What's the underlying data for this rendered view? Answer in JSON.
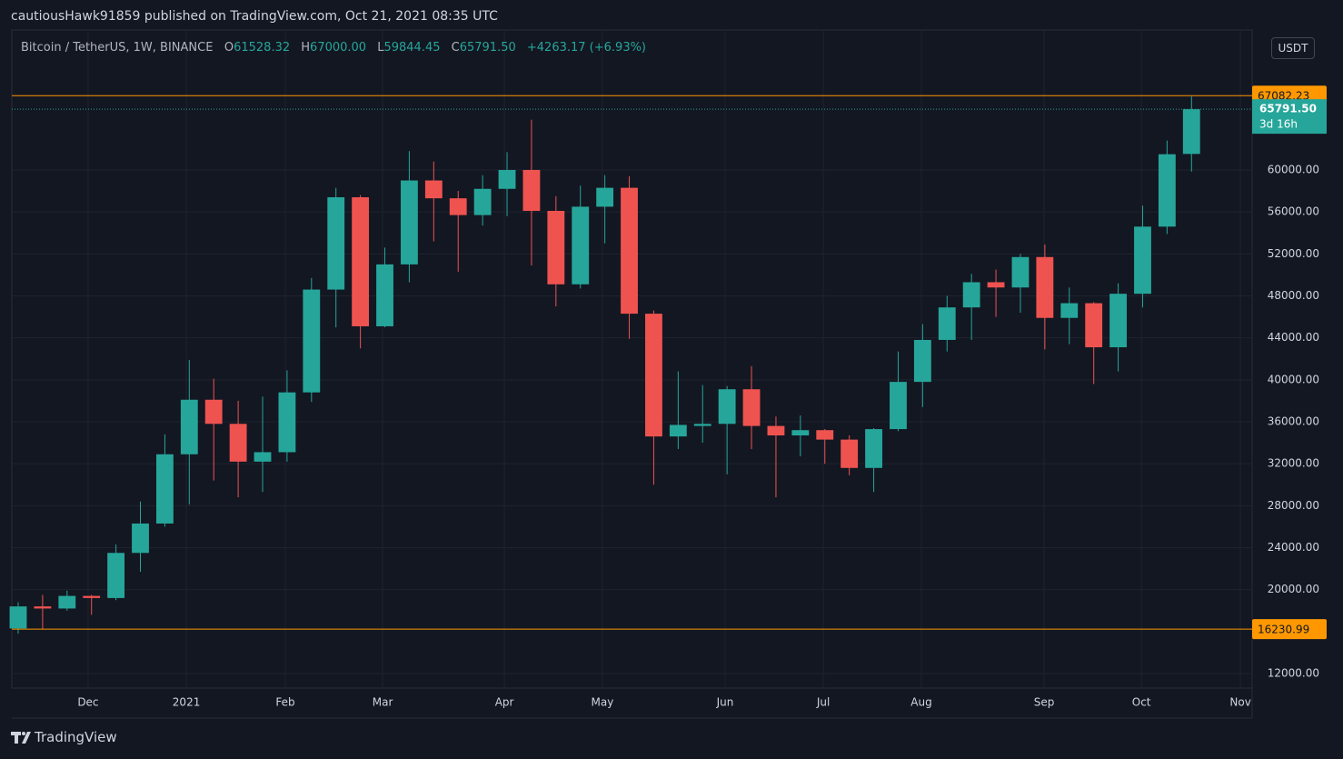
{
  "header": {
    "publisher": "cautiousHawk91859 published on TradingView.com, Oct 21, 2021 08:35 UTC"
  },
  "legend": {
    "symbol": "Bitcoin / TetherUS, 1W, BINANCE",
    "o_label": "O",
    "o": "61528.32",
    "h_label": "H",
    "h": "67000.00",
    "l_label": "L",
    "l": "59844.45",
    "c_label": "C",
    "c": "65791.50",
    "change": "+4263.17 (+6.93%)"
  },
  "currency_badge": "USDT",
  "footer": {
    "brand": "TradingView"
  },
  "chart_data": {
    "type": "candlestick",
    "up_color": "#26a69a",
    "down_color": "#ef5350",
    "open": [
      16300,
      18400,
      18200,
      19400,
      19200,
      23500,
      26300,
      32900,
      38100,
      35800,
      32200,
      33100,
      38800,
      48600,
      57400,
      45100,
      51000,
      59000,
      57300,
      55700,
      58200,
      60000,
      56100,
      49100,
      56500,
      58300,
      46300,
      34600,
      35600,
      35800,
      39100,
      35600,
      34700,
      35200,
      34300,
      31600,
      35300,
      39800,
      43800,
      46900,
      49300,
      48800,
      51700,
      45900,
      47300,
      43100,
      48200,
      54600,
      61528.32
    ],
    "high": [
      18800,
      19500,
      19900,
      19500,
      24300,
      28400,
      34800,
      41900,
      40100,
      38000,
      38400,
      40900,
      49700,
      58300,
      57600,
      52600,
      61800,
      60800,
      58000,
      59500,
      61700,
      64800,
      57500,
      58500,
      59500,
      59400,
      46600,
      40800,
      39500,
      39400,
      41300,
      36500,
      36600,
      35300,
      34700,
      35400,
      42700,
      45300,
      48000,
      50100,
      50500,
      52000,
      52900,
      48800,
      47400,
      49200,
      56600,
      62800,
      67000
    ],
    "low": [
      15800,
      16200,
      18000,
      17600,
      19000,
      21700,
      26000,
      28100,
      30400,
      28800,
      29300,
      32200,
      37900,
      45000,
      43000,
      45000,
      49300,
      53200,
      50300,
      54700,
      55600,
      50900,
      47000,
      48700,
      53000,
      43900,
      30000,
      33400,
      34000,
      31000,
      33400,
      28800,
      32700,
      32000,
      30900,
      29300,
      35100,
      37400,
      42700,
      43800,
      46000,
      46400,
      42900,
      43400,
      39600,
      40800,
      46900,
      53900,
      59844.45
    ],
    "close": [
      18400,
      18200,
      19400,
      19200,
      23500,
      26300,
      32900,
      38100,
      35800,
      32200,
      33100,
      38800,
      48600,
      57400,
      45100,
      51000,
      59000,
      57300,
      55700,
      58200,
      60000,
      56100,
      49100,
      56500,
      58300,
      46300,
      34600,
      35700,
      35800,
      39100,
      35600,
      34700,
      35200,
      34300,
      31600,
      35300,
      39800,
      43800,
      46900,
      49300,
      48800,
      51700,
      45900,
      47300,
      43100,
      48200,
      54600,
      61500,
      65791.5
    ],
    "xlim": [
      -0.26,
      50.48
    ],
    "xticks": [
      {
        "value": 2.86,
        "label": "Dec"
      },
      {
        "value": 6.88,
        "label": "2021"
      },
      {
        "value": 10.93,
        "label": "Feb"
      },
      {
        "value": 14.91,
        "label": "Mar"
      },
      {
        "value": 19.89,
        "label": "Apr"
      },
      {
        "value": 23.9,
        "label": "May"
      },
      {
        "value": 28.92,
        "label": "Jun"
      },
      {
        "value": 32.94,
        "label": "Jul"
      },
      {
        "value": 36.95,
        "label": "Aug"
      },
      {
        "value": 41.97,
        "label": "Sep"
      },
      {
        "value": 45.95,
        "label": "Oct"
      },
      {
        "value": 50.0,
        "label": "Nov"
      }
    ],
    "ylim": [
      10614,
      73341
    ],
    "yticks": [
      {
        "value": 12000,
        "label": "12000.00"
      },
      {
        "value": 20000,
        "label": "20000.00"
      },
      {
        "value": 24000,
        "label": "24000.00"
      },
      {
        "value": 28000,
        "label": "28000.00"
      },
      {
        "value": 32000,
        "label": "32000.00"
      },
      {
        "value": 36000,
        "label": "36000.00"
      },
      {
        "value": 40000,
        "label": "40000.00"
      },
      {
        "value": 44000,
        "label": "44000.00"
      },
      {
        "value": 48000,
        "label": "48000.00"
      },
      {
        "value": 52000,
        "label": "52000.00"
      },
      {
        "value": 56000,
        "label": "56000.00"
      },
      {
        "value": 60000,
        "label": "60000.00"
      }
    ],
    "grid": true,
    "price_lines": [
      {
        "value": 67082.23,
        "label": "67082.23",
        "color": "#ff9800"
      },
      {
        "value": 16230.99,
        "label": "16230.99",
        "color": "#ff9800"
      }
    ],
    "last_price": {
      "value": 65791.5,
      "label": "65791.50",
      "countdown": "3d 16h",
      "color": "#26a69a"
    }
  }
}
